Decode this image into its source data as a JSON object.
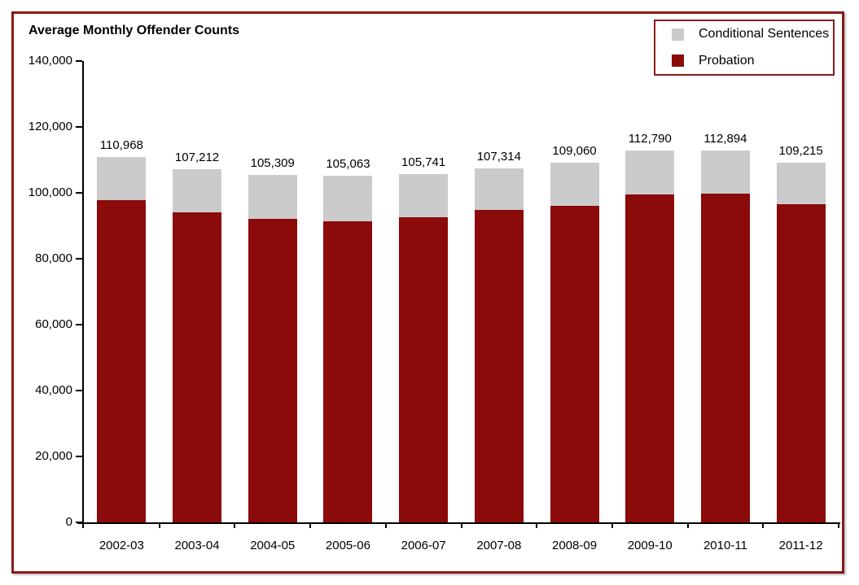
{
  "title": "Average Monthly Offender Counts",
  "frame": {
    "border_color": "#8B1A1A",
    "background": "#FFFFFF"
  },
  "legend": {
    "border_color": "#8B1A1A",
    "position": "top-right",
    "items": [
      {
        "label": "Conditional Sentences",
        "color": "#CBCBCB"
      },
      {
        "label": "Probation",
        "color": "#8B0A0A"
      }
    ]
  },
  "chart_data": {
    "type": "bar",
    "stacked": true,
    "title": "Average Monthly Offender Counts",
    "xlabel": "",
    "ylabel": "",
    "categories": [
      "2002-03",
      "2003-04",
      "2004-05",
      "2005-06",
      "2006-07",
      "2007-08",
      "2008-09",
      "2009-10",
      "2010-11",
      "2011-12"
    ],
    "series": [
      {
        "name": "Probation",
        "color": "#8B0A0A",
        "values": [
          97900,
          94100,
          92000,
          91400,
          92700,
          94900,
          96000,
          99400,
          99800,
          96500
        ]
      },
      {
        "name": "Conditional Sentences",
        "color": "#CBCBCB",
        "values": [
          13068,
          13112,
          13309,
          13663,
          13041,
          12414,
          13060,
          13390,
          13094,
          12715
        ]
      }
    ],
    "totals": [
      110968,
      107212,
      105309,
      105063,
      105741,
      107314,
      109060,
      112790,
      112894,
      109215
    ],
    "total_labels": [
      "110,968",
      "107,212",
      "105,309",
      "105,063",
      "105,741",
      "107,314",
      "109,060",
      "112,790",
      "112,894",
      "109,215"
    ],
    "ylim": [
      0,
      140000
    ],
    "ytick_step": 20000,
    "ytick_labels": [
      "0",
      "20,000",
      "40,000",
      "60,000",
      "80,000",
      "100,000",
      "120,000",
      "140,000"
    ],
    "grid": false,
    "legend_position": "top-right"
  }
}
